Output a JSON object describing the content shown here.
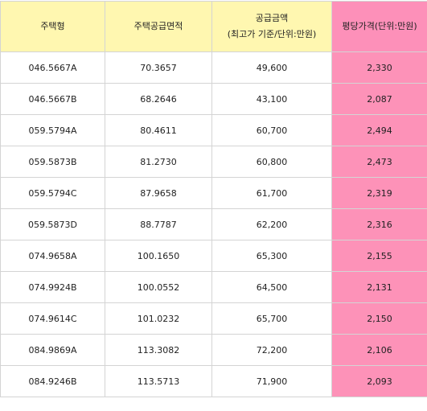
{
  "table": {
    "headers": {
      "type": "주택형",
      "area": "주택공급면적",
      "price_line1": "공급금액",
      "price_line2": "(최고가 기준/단위:만원)",
      "per_pyeong": "평당가격(단위:만원)"
    },
    "rows": [
      {
        "type": "046.5667A",
        "area": "70.3657",
        "price": "49,600",
        "per_pyeong": "2,330"
      },
      {
        "type": "046.5667B",
        "area": "68.2646",
        "price": "43,100",
        "per_pyeong": "2,087"
      },
      {
        "type": "059.5794A",
        "area": "80.4611",
        "price": "60,700",
        "per_pyeong": "2,494"
      },
      {
        "type": "059.5873B",
        "area": "81.2730",
        "price": "60,800",
        "per_pyeong": "2,473"
      },
      {
        "type": "059.5794C",
        "area": "87.9658",
        "price": "61,700",
        "per_pyeong": "2,319"
      },
      {
        "type": "059.5873D",
        "area": "88.7787",
        "price": "62,200",
        "per_pyeong": "2,316"
      },
      {
        "type": "074.9658A",
        "area": "100.1650",
        "price": "65,300",
        "per_pyeong": "2,155"
      },
      {
        "type": "074.9924B",
        "area": "100.0552",
        "price": "64,500",
        "per_pyeong": "2,131"
      },
      {
        "type": "074.9614C",
        "area": "101.0232",
        "price": "65,700",
        "per_pyeong": "2,150"
      },
      {
        "type": "084.9869A",
        "area": "113.3082",
        "price": "72,200",
        "per_pyeong": "2,106"
      },
      {
        "type": "084.9246B",
        "area": "113.5713",
        "price": "71,900",
        "per_pyeong": "2,093"
      }
    ]
  },
  "colors": {
    "header_bg": "#fff7b0",
    "highlight_bg": "#fd92b8",
    "border": "#d4d4d4",
    "text": "#222222"
  }
}
